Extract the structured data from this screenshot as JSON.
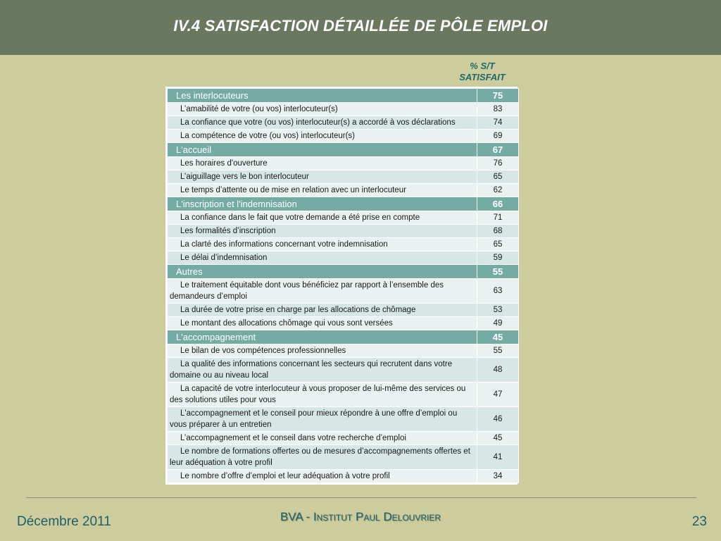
{
  "slide": {
    "title": "IV.4 SATISFACTION DÉTAILLÉE DE PÔLE EMPLOI",
    "column_header": [
      "% S/T",
      "SATISFAIT"
    ],
    "footer": {
      "date": "Décembre 2011",
      "brand": "BVA - Institut Paul Delouvrier",
      "page": "23"
    }
  },
  "table": {
    "sections": [
      {
        "label": "Les interlocuteurs",
        "value": "75",
        "items": [
          {
            "label": "L’amabilité de votre (ou vos) interlocuteur(s)",
            "value": "83"
          },
          {
            "label": "La confiance que votre (ou vos) interlocuteur(s) a accordé à vos déclarations",
            "value": "74"
          },
          {
            "label": "La compétence de votre (ou vos) interlocuteur(s)",
            "value": "69"
          }
        ]
      },
      {
        "label": "L'accueil",
        "value": "67",
        "items": [
          {
            "label": "Les horaires d'ouverture",
            "value": "76"
          },
          {
            "label": "L’aiguillage vers le bon interlocuteur",
            "value": "65"
          },
          {
            "label": "Le temps d’attente ou de mise en relation avec un interlocuteur",
            "value": "62"
          }
        ]
      },
      {
        "label": "L'inscription et l'indemnisation",
        "value": "66",
        "items": [
          {
            "label": "La confiance dans le fait que votre demande a été prise en compte",
            "value": "71"
          },
          {
            "label": "Les formalités d’inscription",
            "value": "68"
          },
          {
            "label": "La clarté des informations concernant votre indemnisation",
            "value": "65"
          },
          {
            "label": "Le délai d’indemnisation",
            "value": "59"
          }
        ]
      },
      {
        "label": "Autres",
        "value": "55",
        "items": [
          {
            "label": "Le traitement équitable dont vous bénéficiez par rapport à l’ensemble des demandeurs d’emploi",
            "value": "63"
          },
          {
            "label": "La durée de votre prise en charge par les allocations de chômage",
            "value": "53"
          },
          {
            "label": "Le montant des allocations chômage qui vous sont versées",
            "value": "49"
          }
        ]
      },
      {
        "label": "L'accompagnement",
        "value": "45",
        "items": [
          {
            "label": "Le bilan de vos compétences professionnelles",
            "value": "55"
          },
          {
            "label": "La qualité des informations concernant les secteurs qui recrutent dans votre domaine ou au niveau local",
            "value": "48"
          },
          {
            "label": "La capacité de votre interlocuteur à vous proposer de lui-même des services ou des solutions utiles pour vous",
            "value": "47"
          },
          {
            "label": "L'accompagnement et le conseil pour mieux répondre à une offre d’emploi ou vous préparer à  un entretien",
            "value": "46"
          },
          {
            "label": "L’accompagnement et le conseil dans votre recherche d’emploi",
            "value": "45"
          },
          {
            "label": "Le nombre de formations offertes ou de mesures d’accompagnements offertes et leur adéquation à votre profil",
            "value": "41"
          },
          {
            "label": "Le nombre d’offre d’emploi et leur adéquation à votre profil",
            "value": "34"
          }
        ]
      }
    ]
  }
}
